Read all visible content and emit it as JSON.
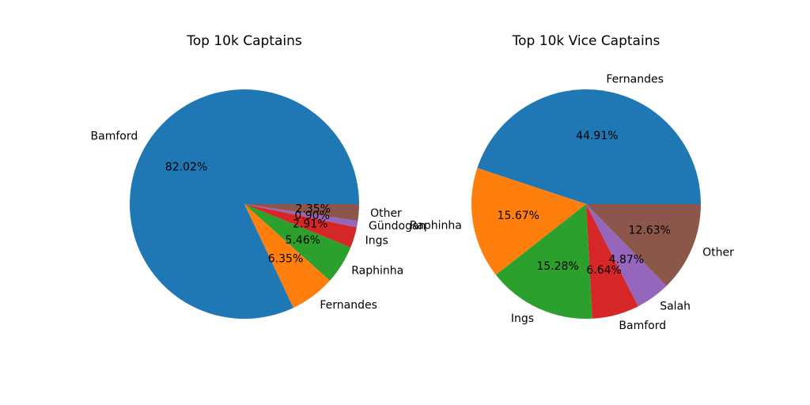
{
  "chart_data": [
    {
      "type": "pie",
      "title": "Top 10k Captains",
      "categories": [
        "Bamford",
        "Fernandes",
        "Raphinha",
        "Ings",
        "Gündogan",
        "Other"
      ],
      "values": [
        82.02,
        6.35,
        5.46,
        2.91,
        0.9,
        2.35
      ],
      "percent_labels": [
        "82.02%",
        "6.35%",
        "5.46%",
        "2.91%",
        "0.90%",
        "2.35%"
      ],
      "colors": [
        "#1f77b4",
        "#ff7f0e",
        "#2ca02c",
        "#d62728",
        "#9467bd",
        "#8c564b"
      ],
      "start_angle_deg": 0,
      "direction": "counterclockwise"
    },
    {
      "type": "pie",
      "title": "Top 10k Vice Captains",
      "categories": [
        "Fernandes",
        "Raphinha",
        "Ings",
        "Bamford",
        "Salah",
        "Other"
      ],
      "values": [
        44.91,
        15.67,
        15.28,
        6.64,
        4.87,
        12.63
      ],
      "percent_labels": [
        "44.91%",
        "15.67%",
        "15.28%",
        "6.64%",
        "4.87%",
        "12.63%"
      ],
      "colors": [
        "#1f77b4",
        "#ff7f0e",
        "#2ca02c",
        "#d62728",
        "#9467bd",
        "#8c564b"
      ],
      "start_angle_deg": 0,
      "direction": "counterclockwise"
    }
  ]
}
